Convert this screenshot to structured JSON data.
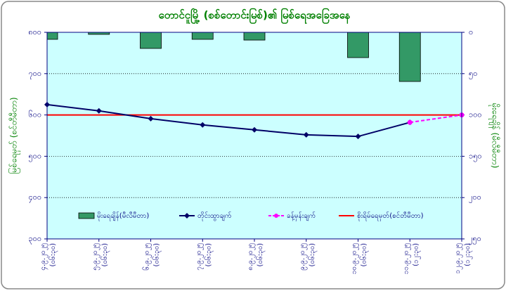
{
  "chart_data": {
    "type": "combo",
    "title": "တောင်ငူမြို့ (စစ်တောင်းမြစ်)၏ မြစ်ရေအခြေအနေ",
    "y_label": "မြစ်ရေမှတ် (စင်တီမီတာ)",
    "y2_label": "မိုးရေချိန် (မီလီမီတာ)",
    "categories": [
      [
        "၄.၉.၂၀၂၅",
        "(၀၆:၃၀)"
      ],
      [
        "၅.၉.၂၀၂၅",
        "(၀၆:၃၀)"
      ],
      [
        "၆.၉.၂၀၂၅",
        "(၀၆:၃၀)"
      ],
      [
        "၇.၉.၂၀၂၅",
        "(၀၆:၃၀)"
      ],
      [
        "၈.၉.၂၀၂၅",
        "(၀၆:၃၀)"
      ],
      [
        "၉.၉.၂၀၂၅",
        "(၀၆:၃၀)"
      ],
      [
        "၁၀.၉.၂၀၂၅",
        "(၀၆:၃၀)"
      ],
      [
        "၁၁.၉.၂၀၂၅",
        "(၁၂:၃၀)"
      ],
      [
        "၁၂.၉.၂၀၂၅",
        "(၁၂:၃၀)"
      ]
    ],
    "ylim": [
      300,
      800
    ],
    "yticks": [
      {
        "value": 300,
        "label": "၃၀၀"
      },
      {
        "value": 400,
        "label": "၄၀၀"
      },
      {
        "value": 500,
        "label": "၅၀၀"
      },
      {
        "value": 600,
        "label": "၆၀၀"
      },
      {
        "value": 700,
        "label": "၇၀၀"
      },
      {
        "value": 800,
        "label": "၈၀၀"
      }
    ],
    "y2lim": [
      250,
      0
    ],
    "y2ticks": [
      {
        "value": 0,
        "label": "၀"
      },
      {
        "value": 50,
        "label": "၅၀"
      },
      {
        "value": 100,
        "label": "၁၀၀"
      },
      {
        "value": 150,
        "label": "၁၅၀"
      },
      {
        "value": 200,
        "label": "၂၀၀"
      },
      {
        "value": 250,
        "label": "၂၅၀"
      }
    ],
    "grid": true,
    "series": [
      {
        "name": "မိုးရေချိန်(မီလီမီတာ)",
        "type": "bar",
        "axis": "y2",
        "color": "#339966",
        "values": [
          8.5,
          2.5,
          19.5,
          8.5,
          9.4,
          null,
          30.6,
          59.5,
          null
        ]
      },
      {
        "name": "တိုင်းထွာချက်",
        "type": "line",
        "color": "#000066",
        "marker": "diamond",
        "values": [
          625,
          610,
          591,
          576,
          564,
          552,
          548,
          582,
          null
        ]
      },
      {
        "name": "ခန့်မှန်းချက်",
        "type": "line",
        "color": "#ff00ff",
        "marker": "circle",
        "dashed": true,
        "values": [
          null,
          null,
          null,
          null,
          null,
          null,
          null,
          582,
          600
        ]
      },
      {
        "name": "စိုးရိမ်ရေမှတ်(စင်တီမီတာ)",
        "type": "line",
        "color": "#ff0000",
        "values": [
          600,
          600,
          600,
          600,
          600,
          600,
          600,
          600,
          600
        ]
      }
    ]
  }
}
